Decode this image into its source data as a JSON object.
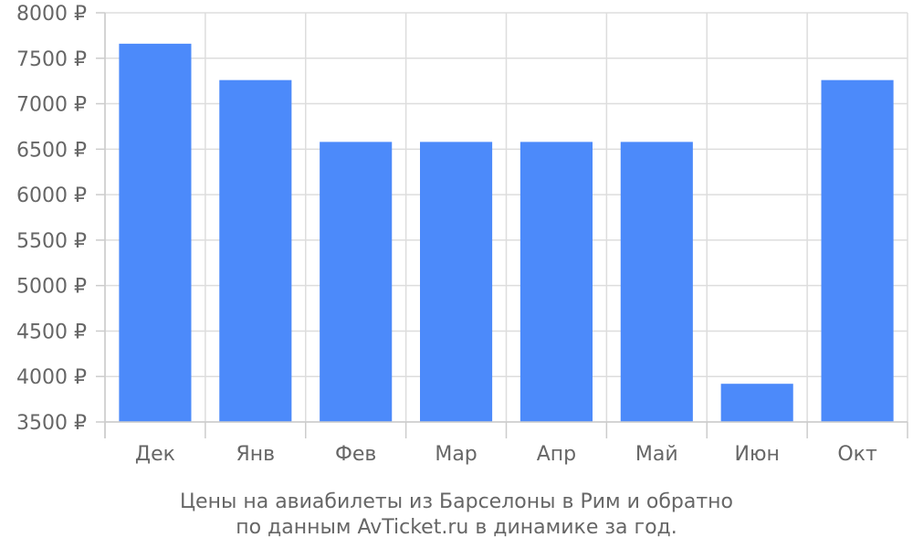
{
  "chart_data": {
    "type": "bar",
    "categories": [
      "Дек",
      "Янв",
      "Фев",
      "Мар",
      "Апр",
      "Май",
      "Июн",
      "Окт"
    ],
    "values": [
      7660,
      7260,
      6580,
      6580,
      6580,
      6580,
      3920,
      7260
    ],
    "ylim": [
      3500,
      8000
    ],
    "yticks": [
      3500,
      4000,
      4500,
      5000,
      5500,
      6000,
      6500,
      7000,
      7500,
      8000
    ],
    "ytick_suffix": " ₽",
    "grid": true,
    "bar_color": "#4c8afa",
    "caption_lines": [
      "Цены на авиабилеты из Барселоны в Рим и обратно",
      "по данным AvTicket.ru в динамике за год."
    ]
  }
}
